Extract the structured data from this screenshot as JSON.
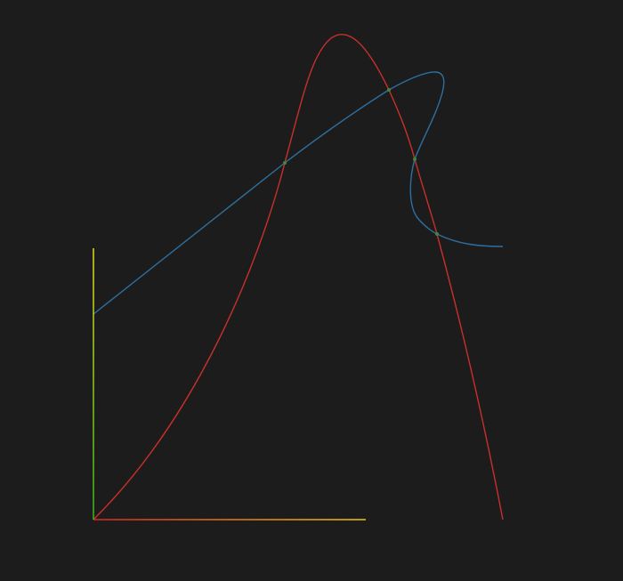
{
  "colors": {
    "background": "#1c1c1c",
    "red_curve": "#c8302a",
    "blue_curve": "#2f6f9f",
    "intersection_dot": "#3a8a3a",
    "x_axis_start": "#d62a1e",
    "x_axis_end": "#f2c21a",
    "y_axis_start": "#3ec21a",
    "y_axis_end": "#f2ea1a"
  },
  "curves": [
    {
      "name": "red-curve",
      "color_key": "red_curve"
    },
    {
      "name": "blue-curve",
      "color_key": "blue_curve"
    }
  ],
  "intersections": {
    "count": 4
  }
}
